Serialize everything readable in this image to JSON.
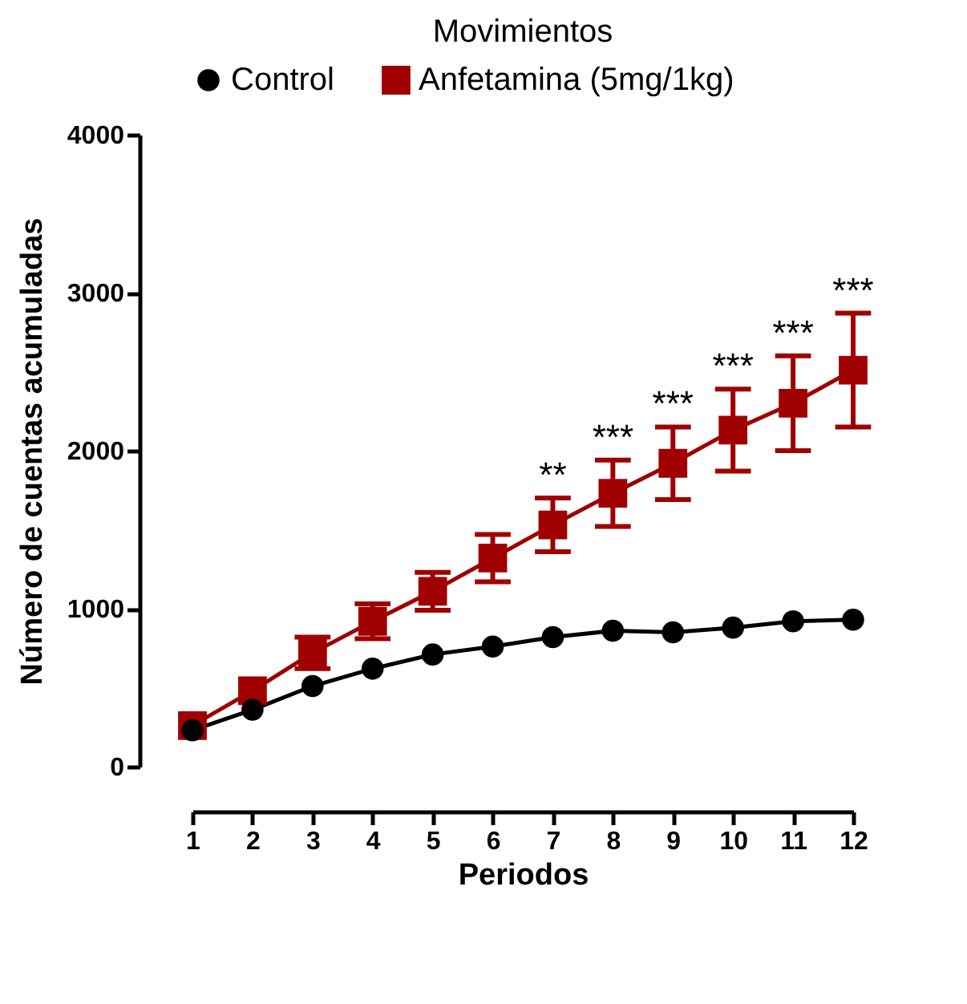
{
  "chart_data": {
    "type": "line",
    "title": "Movimientos",
    "xlabel": "Periodos",
    "ylabel": "Número de cuentas acumuladas",
    "x": [
      1,
      2,
      3,
      4,
      5,
      6,
      7,
      8,
      9,
      10,
      11,
      12
    ],
    "xlim": [
      1,
      12
    ],
    "xticks": [
      1,
      2,
      3,
      4,
      5,
      6,
      7,
      8,
      9,
      10,
      11,
      12
    ],
    "ylim": [
      0,
      4000
    ],
    "yticks": [
      0,
      1000,
      2000,
      3000,
      4000
    ],
    "grid": false,
    "legend": "top",
    "line_style": "solid",
    "series": [
      {
        "name": "Control",
        "color": "#000000",
        "marker": "circle",
        "values": [
          230,
          360,
          510,
          620,
          710,
          760,
          820,
          860,
          850,
          880,
          920,
          930
        ]
      },
      {
        "name": "Anfetamina (5mg/1kg)",
        "color": "#a00000",
        "marker": "square",
        "values": [
          260,
          480,
          720,
          920,
          1110,
          1320,
          1530,
          1730,
          1920,
          2130,
          2300,
          2510
        ],
        "errors": [
          null,
          null,
          100,
          110,
          120,
          150,
          170,
          210,
          230,
          260,
          300,
          360
        ]
      }
    ],
    "annotations": [
      {
        "text": "**",
        "x": 7,
        "y": 1700
      },
      {
        "text": "***",
        "x": 8,
        "y": 1940
      },
      {
        "text": "***",
        "x": 9,
        "y": 2150
      },
      {
        "text": "***",
        "x": 10,
        "y": 2390
      },
      {
        "text": "***",
        "x": 11,
        "y": 2600
      },
      {
        "text": "***",
        "x": 12,
        "y": 2870
      }
    ]
  }
}
